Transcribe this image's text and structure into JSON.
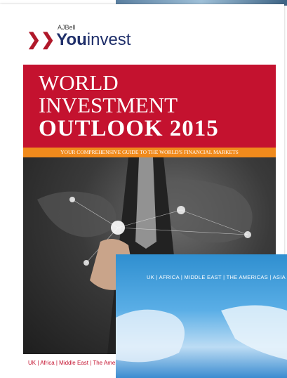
{
  "logo": {
    "small": "AJBell",
    "bold": "You",
    "light": "invest"
  },
  "cover": {
    "title_lines": [
      "WORLD",
      "INVESTMENT",
      "OUTLOOK 2015"
    ],
    "tagline": "YOUR COMPREHENSIVE GUIDE TO THE WORLD'S FINANCIAL MARKETS",
    "regions": "UK | Africa | Middle East | The Americas | Asia"
  },
  "second_cover": {
    "regions": "UK | AFRICA | MIDDLE EAST | THE AMERICAS | ASIA"
  }
}
